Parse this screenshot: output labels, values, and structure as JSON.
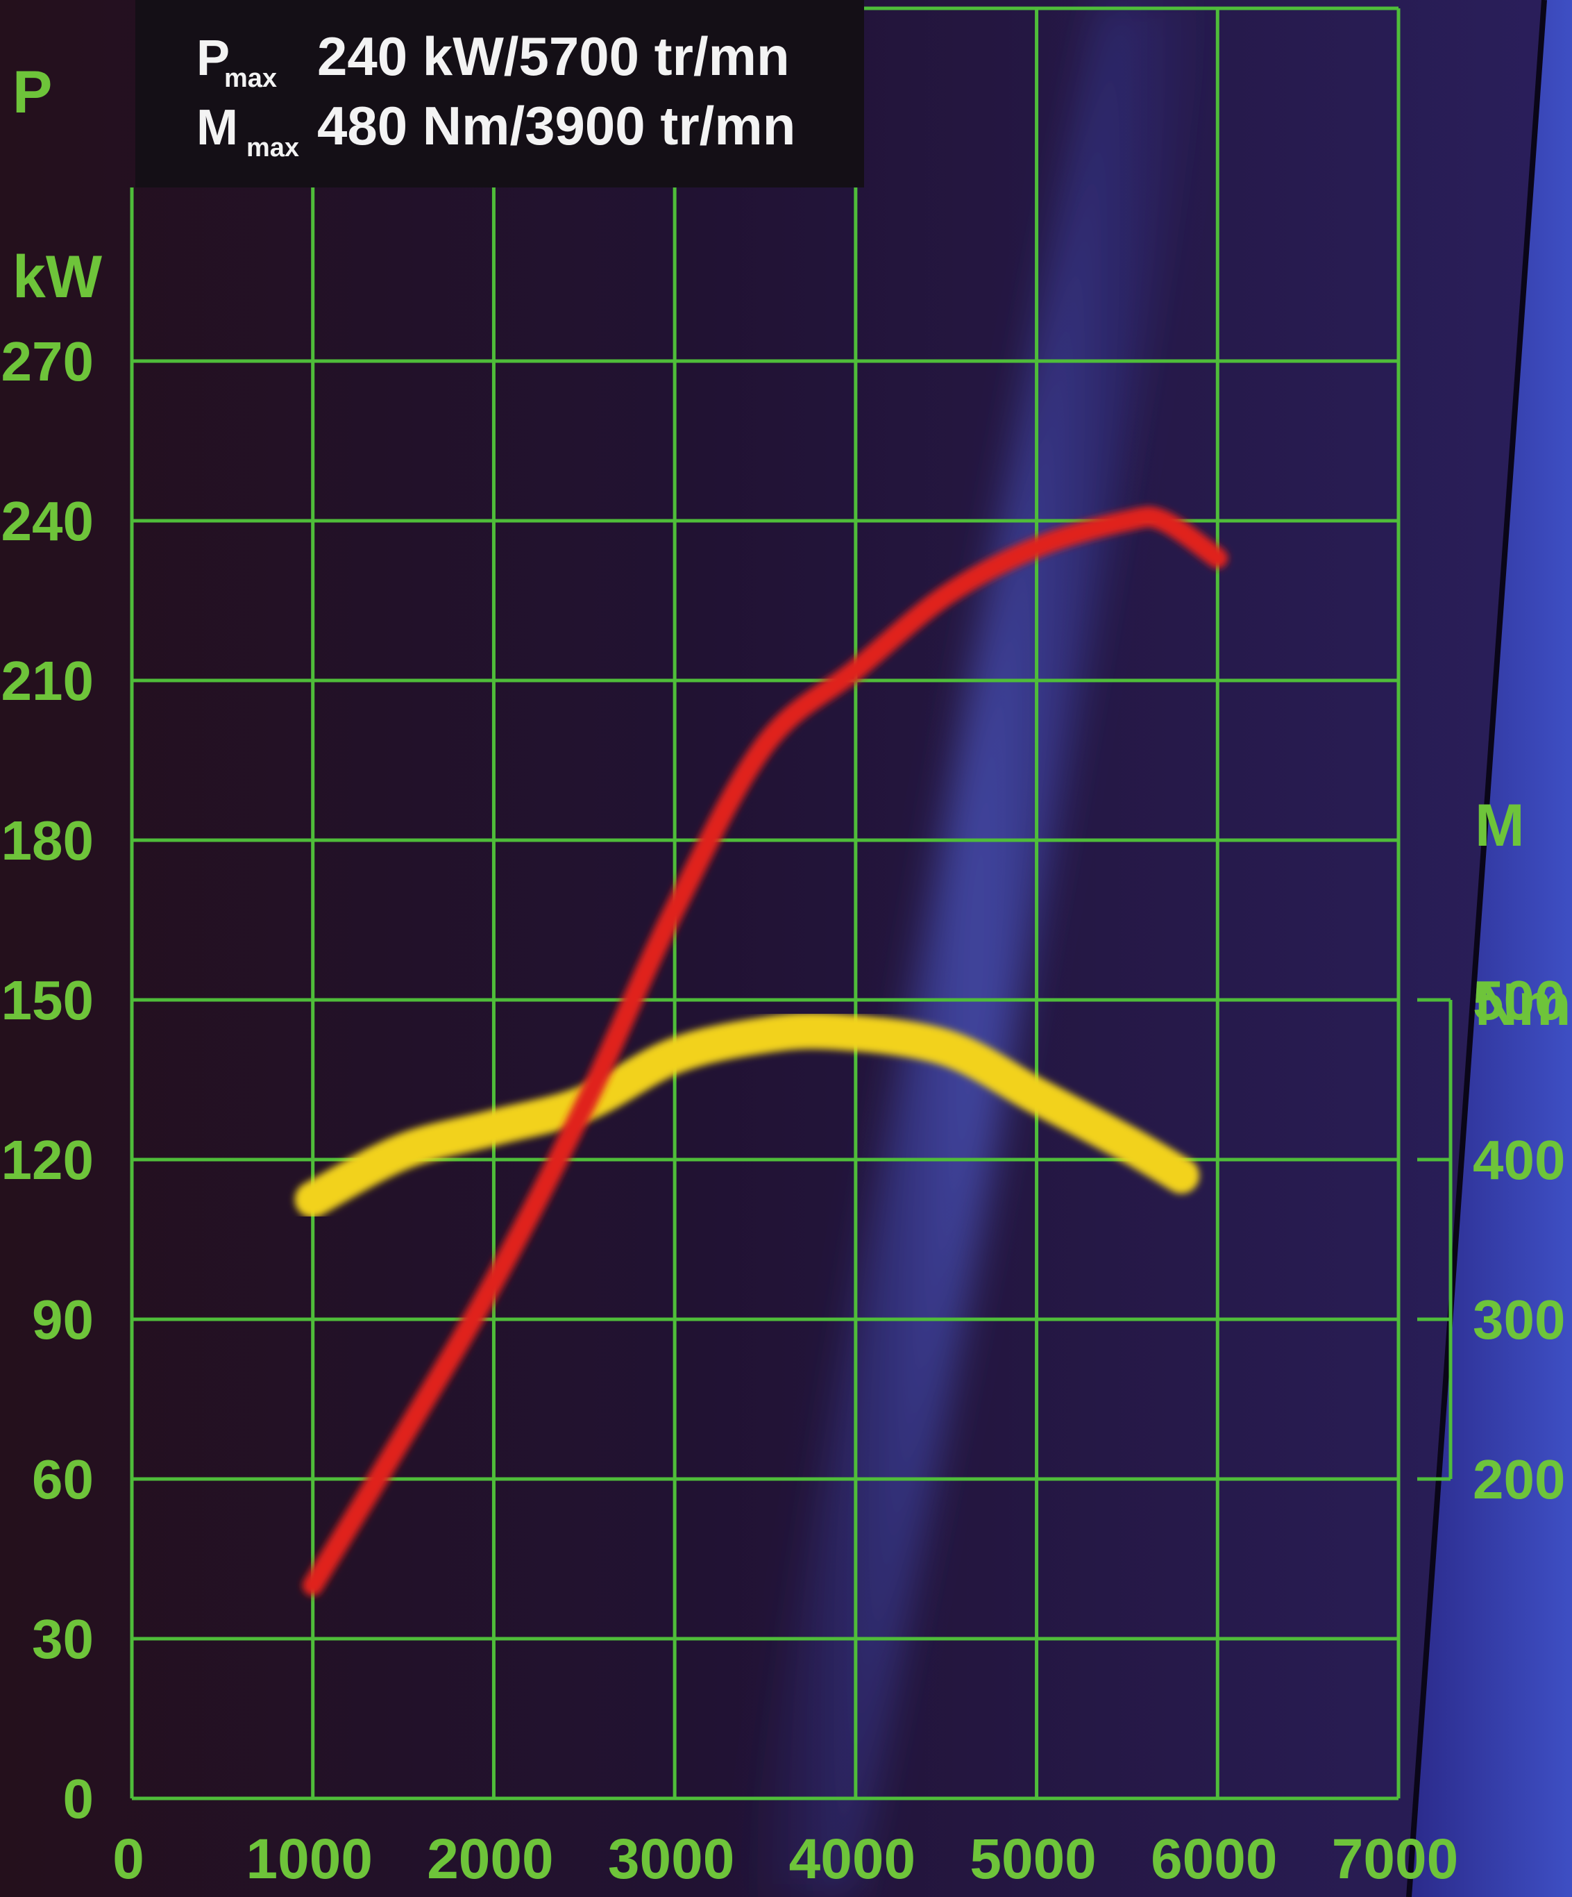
{
  "spec_box": {
    "p_symbol": "P",
    "p_sub": "max",
    "p_value": "240 kW/5700 tr/mn",
    "m_symbol": "M",
    "m_sub": "max",
    "m_value": "480 Nm/3900 tr/mn"
  },
  "colors": {
    "grid": "#4fbd3a",
    "power_curve": "#e0241f",
    "torque_curve": "#f2d21a",
    "label": "#6ec43a",
    "background": "#1b1026"
  },
  "chart_data": {
    "type": "line",
    "x_axis": {
      "ticks": [
        0,
        1000,
        2000,
        3000,
        4000,
        5000,
        6000,
        7000
      ],
      "tick_labels": [
        "0",
        "1000",
        "2000",
        "3000",
        "4000",
        "5000",
        "6000",
        "7000"
      ],
      "range": [
        0,
        7000
      ]
    },
    "y_left": {
      "symbol": "P",
      "unit": "kW",
      "ticks": [
        0,
        30,
        60,
        90,
        120,
        150,
        180,
        210,
        240,
        270
      ],
      "tick_labels": [
        "0",
        "30",
        "60",
        "90",
        "120",
        "150",
        "180",
        "210",
        "240",
        "270"
      ],
      "range": [
        0,
        270
      ]
    },
    "y_right": {
      "symbol": "M",
      "unit": "Nm",
      "ticks": [
        200,
        300,
        400,
        500
      ],
      "tick_labels": [
        "200",
        "300",
        "400",
        "500"
      ],
      "range": [
        0,
        500
      ]
    },
    "grid": true,
    "series": [
      {
        "axis": "left",
        "x": [
          1000,
          1500,
          2000,
          2500,
          3000,
          3500,
          4000,
          4500,
          5000,
          5500,
          5700,
          6000
        ],
        "y": [
          40,
          68,
          97,
          130,
          167,
          198,
          212,
          226,
          235,
          240,
          240,
          233
        ]
      },
      {
        "axis": "right",
        "x": [
          1000,
          1500,
          2000,
          2500,
          3000,
          3500,
          3900,
          4500,
          5000,
          5500,
          5800
        ],
        "y": [
          375,
          405,
          420,
          435,
          465,
          478,
          480,
          470,
          440,
          410,
          390
        ]
      }
    ]
  }
}
